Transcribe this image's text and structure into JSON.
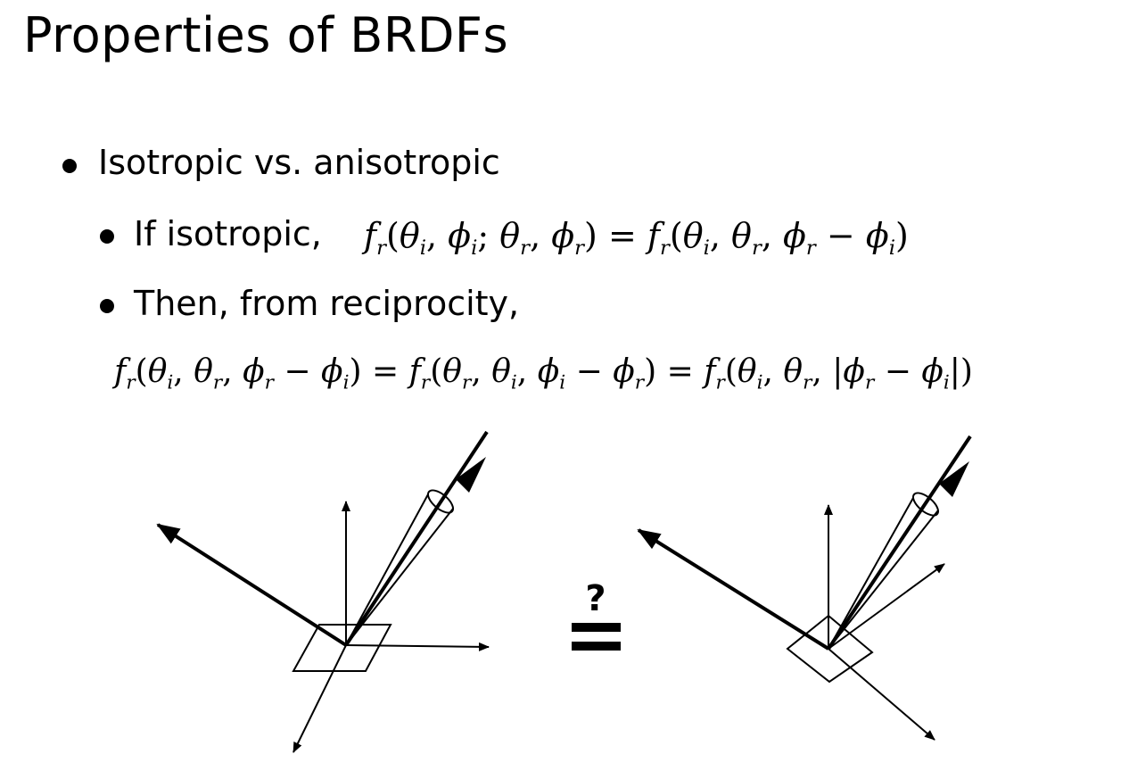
{
  "slide": {
    "title": "Properties of BRDFs"
  },
  "bullets": {
    "level1": "Isotropic vs. anisotropic",
    "sub1_label": "If isotropic,",
    "sub2_label": "Then, from reciprocity,"
  },
  "figure": {
    "question_mark": "?"
  }
}
